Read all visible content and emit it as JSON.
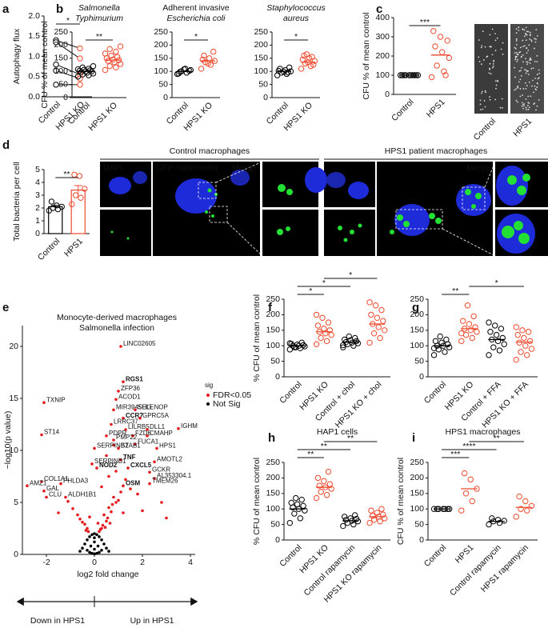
{
  "chart_data": [
    {
      "type": "strip",
      "panel": "a",
      "ylabel": "Autophagy flux",
      "categories": [
        "Control",
        "HPS1 KO"
      ],
      "colors": [
        "#000000",
        "#ef4a2e"
      ],
      "paired": true,
      "values": [
        [
          1.4,
          1.35,
          0.8,
          0.65,
          0.3
        ],
        [
          1.2,
          0.95,
          0.55,
          0.45,
          0.3
        ]
      ],
      "ylim": [
        0,
        2
      ],
      "yticks": [
        {
          "value": 0,
          "label": "0.0"
        },
        0.5,
        {
          "value": 1,
          "label": "1.0"
        },
        1.5,
        {
          "value": 2,
          "label": "2.0"
        }
      ],
      "brackets": [
        {
          "from": 0,
          "to": 1,
          "label": "*"
        }
      ]
    },
    {
      "type": "strip",
      "panel": "b",
      "title": [
        "Salmonella",
        "Typhimurium"
      ],
      "ylabel": "CFU % of mean control",
      "categories": [
        "Control",
        "HPS1 KO"
      ],
      "colors": [
        "#000000",
        "#ef4a2e"
      ],
      "values": [
        [
          80,
          85,
          88,
          92,
          95,
          97,
          100,
          100,
          102,
          104,
          106,
          108,
          110,
          115,
          120
        ],
        [
          105,
          115,
          120,
          128,
          135,
          140,
          143,
          145,
          150,
          155,
          160,
          168,
          175,
          185,
          195
        ]
      ],
      "means": [
        100,
        143
      ],
      "ylim": [
        0,
        250
      ],
      "yticks": [
        0,
        50,
        100,
        150,
        200,
        250
      ],
      "brackets": [
        {
          "from": 0,
          "to": 1,
          "label": "**"
        }
      ]
    },
    {
      "type": "strip",
      "title": [
        "Adherent invasive",
        "Escherichia coli"
      ],
      "categories": [
        "Control",
        "HPS1 KO"
      ],
      "colors": [
        "#000000",
        "#ef4a2e"
      ],
      "values": [
        [
          90,
          95,
          100,
          105,
          110,
          98,
          102,
          108,
          92
        ],
        [
          110,
          125,
          135,
          140,
          150,
          160,
          175,
          130,
          145
        ]
      ],
      "means": [
        100,
        140
      ],
      "ylim": [
        0,
        250
      ],
      "yticks": [
        0,
        50,
        100,
        150,
        200,
        250
      ],
      "brackets": [
        {
          "from": 0,
          "to": 1,
          "label": "*"
        }
      ]
    },
    {
      "type": "strip",
      "title": [
        "Staphylococcus",
        "aureus"
      ],
      "categories": [
        "Control",
        "HPS1 KO"
      ],
      "colors": [
        "#000000",
        "#ef4a2e"
      ],
      "values": [
        [
          85,
          90,
          95,
          100,
          105,
          110,
          115,
          98,
          102,
          96
        ],
        [
          110,
          120,
          130,
          140,
          150,
          160,
          125,
          135,
          145,
          155,
          165
        ]
      ],
      "means": [
        100,
        135
      ],
      "ylim": [
        0,
        250
      ],
      "yticks": [
        0,
        50,
        100,
        150,
        200,
        250
      ],
      "brackets": [
        {
          "from": 0,
          "to": 1,
          "label": "*"
        }
      ]
    },
    {
      "type": "strip",
      "panel": "c",
      "ylabel": "CFU % of mean control",
      "categories": [
        "Control",
        "HPS1"
      ],
      "colors": [
        "#000000",
        "#ef4a2e"
      ],
      "values": [
        [
          100,
          100,
          100,
          100,
          100,
          100,
          100,
          100,
          100,
          100
        ],
        [
          90,
          120,
          150,
          190,
          220,
          250,
          280,
          300,
          330,
          100
        ]
      ],
      "means": [
        100,
        205
      ],
      "ylim": [
        0,
        400
      ],
      "yticks": [
        0,
        100,
        200,
        300,
        400
      ],
      "brackets": [
        {
          "from": 0,
          "to": 1,
          "label": "***"
        }
      ],
      "image_labels": [
        "Control",
        "HPS1"
      ]
    },
    {
      "type": "bar",
      "panel": "d",
      "ylabel": "Total bacteria per cell",
      "categories": [
        "Control",
        "HPS1"
      ],
      "colors": [
        "#000000",
        "#ef4a2e"
      ],
      "means": [
        2.1,
        3.4
      ],
      "errors": [
        0.1,
        0.35
      ],
      "values": [
        [
          1.8,
          1.9,
          2.0,
          2.1,
          2.2,
          2.5
        ],
        [
          2.3,
          2.8,
          3.0,
          3.5,
          4.5,
          4.6
        ]
      ],
      "ylim": [
        0,
        5
      ],
      "yticks": [
        0,
        1,
        2,
        3,
        4,
        5
      ],
      "brackets": [
        {
          "from": 0,
          "to": 1,
          "label": "**"
        }
      ],
      "micrographs": {
        "control_title": "Control macrophages",
        "patient_title": "HPS1 patient macrophages",
        "dapi": "DAPI",
        "gfp": "GFP-Salmonella",
        "merge": "Merge"
      }
    },
    {
      "type": "volcano",
      "panel": "e",
      "title": [
        "Monocyte-derived macrophages",
        "Salmonella infection"
      ],
      "xlabel": "log2 fold change",
      "ylabel": "−log10(p value)",
      "xlim": [
        -3,
        4.2
      ],
      "xticks": [
        -2,
        0,
        2,
        4
      ],
      "ylim": [
        0,
        22
      ],
      "yticks": [
        0,
        5,
        10,
        15,
        20
      ],
      "legend_title": "sig",
      "series": [
        {
          "name": "FDR<0.05",
          "color": "#e41a1c",
          "x": [
            0.3,
            0.5,
            0.7,
            0.9,
            1.1,
            0.4,
            0.6,
            0.8,
            1.3,
            1.5,
            0.2,
            0.35,
            0.55,
            0.75,
            1.0,
            1.8,
            2.0,
            0.45,
            0.65,
            0.25,
            -0.3,
            -0.5,
            -0.7,
            -0.9,
            -1.1,
            -0.4,
            -0.6,
            -1.5,
            -0.35,
            -0.25,
            0.3,
            0.6,
            0.9,
            1.2,
            0.15,
            -0.2,
            0.5,
            0.8,
            2.8,
            3.0
          ],
          "y": [
            2.5,
            3.2,
            4.1,
            5.0,
            6.0,
            3.8,
            4.5,
            5.5,
            7.2,
            6.3,
            2.2,
            2.8,
            3.5,
            4.8,
            5.2,
            5.8,
            4.2,
            2.6,
            3.0,
            2.4,
            2.5,
            3.1,
            3.8,
            4.4,
            5.1,
            2.9,
            3.4,
            4.0,
            2.3,
            2.2,
            6.5,
            7.5,
            8.0,
            4.0,
            3.0,
            3.6,
            9.5,
            10.5,
            5.0,
            3.5
          ]
        },
        {
          "name": "Not Sig",
          "color": "#000000",
          "x": [
            -0.5,
            -0.4,
            -0.3,
            -0.2,
            -0.1,
            0,
            0.1,
            0.2,
            0.3,
            0.4,
            0.5,
            -0.3,
            -0.15,
            0,
            0.15,
            0.3,
            -0.2,
            0,
            0.2,
            -0.1,
            0.1,
            0,
            -0.6,
            0.6,
            0
          ],
          "y": [
            0.6,
            1.0,
            1.4,
            1.7,
            1.9,
            2.0,
            1.9,
            1.7,
            1.4,
            1.0,
            0.6,
            0.4,
            0.8,
            1.2,
            0.8,
            0.4,
            0.2,
            0.5,
            0.2,
            0.1,
            0.1,
            0.05,
            0.3,
            0.3,
            1.6
          ]
        }
      ],
      "genes": [
        {
          "label": "LINC02605",
          "x": 1.1,
          "y": 20.0
        },
        {
          "label": "RGS1",
          "x": 1.2,
          "y": 16.6
        },
        {
          "label": "ZFP36",
          "x": 1.0,
          "y": 15.7
        },
        {
          "label": "ACOD1",
          "x": 0.9,
          "y": 14.9
        },
        {
          "label": "MIR3945HG",
          "x": 0.8,
          "y": 13.9
        },
        {
          "label": "SELENOP",
          "x": 1.7,
          "y": 13.9
        },
        {
          "label": "CCR7",
          "x": 1.2,
          "y": 13.1
        },
        {
          "label": "GPRC5A",
          "x": 1.9,
          "y": 13.1
        },
        {
          "label": "LRRC37",
          "x": 0.7,
          "y": 12.5
        },
        {
          "label": "LILRB5",
          "x": 1.3,
          "y": 12.0
        },
        {
          "label": "DLL1",
          "x": 2.2,
          "y": 12.0
        },
        {
          "label": "PDPR",
          "x": 0.5,
          "y": 11.4
        },
        {
          "label": "FZD6",
          "x": 1.6,
          "y": 11.4
        },
        {
          "label": "CMAHP",
          "x": 2.2,
          "y": 11.4
        },
        {
          "label": "PMP22",
          "x": 0.8,
          "y": 11.0
        },
        {
          "label": "FUCA1",
          "x": 1.7,
          "y": 10.6
        },
        {
          "label": "HPS1",
          "x": 2.6,
          "y": 10.2
        },
        {
          "label": "SERPINB2",
          "x": 0.0,
          "y": 10.2
        },
        {
          "label": "STAB1",
          "x": 1.0,
          "y": 10.2
        },
        {
          "label": "TNF",
          "x": 1.1,
          "y": 9.1
        },
        {
          "label": "AMOTL2",
          "x": 2.5,
          "y": 8.9
        },
        {
          "label": "SERPINB1",
          "x": -0.1,
          "y": 8.7
        },
        {
          "label": "CXCL5",
          "x": 1.4,
          "y": 8.3
        },
        {
          "label": "NOD2",
          "x": 0.1,
          "y": 8.3
        },
        {
          "label": "GCKR",
          "x": 2.3,
          "y": 7.9
        },
        {
          "label": "AL353304.1",
          "x": 2.5,
          "y": 7.3
        },
        {
          "label": "TMEM26",
          "x": 2.3,
          "y": 6.8
        },
        {
          "label": "OSM",
          "x": 1.2,
          "y": 6.6
        },
        {
          "label": "IGHM",
          "x": 3.5,
          "y": 12.1
        },
        {
          "label": "TXNIP",
          "x": -2.1,
          "y": 14.6
        },
        {
          "label": "ST14",
          "x": -2.2,
          "y": 11.5
        },
        {
          "label": "COL1A1",
          "x": -2.2,
          "y": 7.0
        },
        {
          "label": "PHLDA3",
          "x": -1.4,
          "y": 6.8
        },
        {
          "label": "AMZ1",
          "x": -2.8,
          "y": 6.6
        },
        {
          "label": "GAL",
          "x": -2.1,
          "y": 6.1
        },
        {
          "label": "CLU",
          "x": -2.0,
          "y": 5.5
        },
        {
          "label": "ALDH1B1",
          "x": -1.2,
          "y": 5.5
        }
      ],
      "annotations": [
        "Down in HPS1",
        "Up in HPS1"
      ]
    },
    {
      "type": "strip",
      "panel": "f",
      "ylabel": "% CFU of mean control",
      "categories": [
        "Control",
        "HPS1 KO",
        "Control + chol",
        "HPS1 KO + chol"
      ],
      "colors": [
        "#000000",
        "#ef4a2e",
        "#000000",
        "#ef4a2e"
      ],
      "values": [
        [
          88,
          92,
          95,
          98,
          100,
          100,
          102,
          104,
          106,
          110,
          95,
          108
        ],
        [
          105,
          115,
          125,
          135,
          140,
          145,
          150,
          155,
          165,
          175,
          190,
          200
        ],
        [
          95,
          100,
          105,
          108,
          110,
          112,
          115,
          118,
          120,
          125,
          130,
          102
        ],
        [
          110,
          125,
          140,
          150,
          160,
          170,
          180,
          190,
          200,
          215,
          230,
          240
        ]
      ],
      "means": [
        100,
        145,
        112,
        170
      ],
      "ylim": [
        0,
        250
      ],
      "yticks": [
        0,
        50,
        100,
        150,
        200,
        250
      ],
      "brackets": [
        {
          "from": 0,
          "to": 1,
          "label": "*"
        },
        {
          "from": 0,
          "to": 2,
          "label": "*"
        },
        {
          "from": 1,
          "to": 3,
          "label": "*"
        }
      ]
    },
    {
      "type": "strip",
      "panel": "g",
      "categories": [
        "Control",
        "HPS1 KO",
        "Control + FFA",
        "HPS1 KO + FFA"
      ],
      "colors": [
        "#000000",
        "#ef4a2e",
        "#000000",
        "#ef4a2e"
      ],
      "values": [
        [
          70,
          80,
          88,
          95,
          100,
          100,
          105,
          110,
          115,
          120,
          130,
          92
        ],
        [
          115,
          125,
          135,
          145,
          150,
          155,
          160,
          170,
          180,
          195,
          230,
          140
        ],
        [
          70,
          85,
          95,
          105,
          115,
          120,
          125,
          135,
          145,
          155,
          165,
          175
        ],
        [
          55,
          70,
          80,
          90,
          100,
          110,
          115,
          125,
          135,
          145,
          150,
          160
        ]
      ],
      "means": [
        100,
        155,
        120,
        112
      ],
      "ylim": [
        0,
        250
      ],
      "yticks": [
        0,
        50,
        100,
        150,
        200,
        250
      ],
      "brackets": [
        {
          "from": 0,
          "to": 1,
          "label": "**"
        },
        {
          "from": 1,
          "to": 3,
          "label": "*"
        }
      ]
    },
    {
      "type": "strip",
      "panel": "h",
      "title": [
        "HAP1 cells"
      ],
      "ylabel": "% CFU of mean control",
      "categories": [
        "Control",
        "HPS1 KO",
        "Control rapamycin",
        "HPS1 KO rapamycin"
      ],
      "colors": [
        "#000000",
        "#ef4a2e",
        "#000000",
        "#ef4a2e"
      ],
      "values": [
        [
          55,
          70,
          85,
          95,
          100,
          105,
          110,
          115,
          120,
          130,
          135
        ],
        [
          135,
          145,
          155,
          165,
          170,
          175,
          180,
          190,
          200,
          220
        ],
        [
          45,
          50,
          55,
          60,
          62,
          65,
          68,
          70,
          75,
          80
        ],
        [
          55,
          60,
          65,
          70,
          75,
          78,
          82,
          88,
          95,
          100
        ]
      ],
      "means": [
        100,
        170,
        62,
        75
      ],
      "ylim": [
        0,
        250
      ],
      "yticks": [
        0,
        50,
        100,
        150,
        200,
        250
      ],
      "brackets": [
        {
          "from": 0,
          "to": 1,
          "label": "**"
        },
        {
          "from": 0,
          "to": 2,
          "label": "**"
        },
        {
          "from": 1,
          "to": 3,
          "label": "**"
        }
      ]
    },
    {
      "type": "strip",
      "panel": "i",
      "title": [
        "HPS1 macrophages"
      ],
      "ylabel": "CFU % of mean control",
      "categories": [
        "Control",
        "HPS1",
        "Control rapamycin",
        "HPS1 rapamycin"
      ],
      "colors": [
        "#000000",
        "#ef4a2e",
        "#000000",
        "#ef4a2e"
      ],
      "values": [
        [
          100,
          100,
          100,
          100,
          100,
          100,
          100
        ],
        [
          95,
          125,
          150,
          165,
          195,
          215
        ],
        [
          50,
          55,
          60,
          62,
          65,
          70
        ],
        [
          75,
          95,
          100,
          110,
          125,
          140
        ]
      ],
      "means": [
        100,
        165,
        60,
        105
      ],
      "ylim": [
        0,
        250
      ],
      "yticks": [
        0,
        50,
        100,
        150,
        200,
        250
      ],
      "brackets": [
        {
          "from": 0,
          "to": 1,
          "label": "***"
        },
        {
          "from": 0,
          "to": 2,
          "label": "****"
        },
        {
          "from": 1,
          "to": 3,
          "label": "**"
        }
      ]
    }
  ]
}
